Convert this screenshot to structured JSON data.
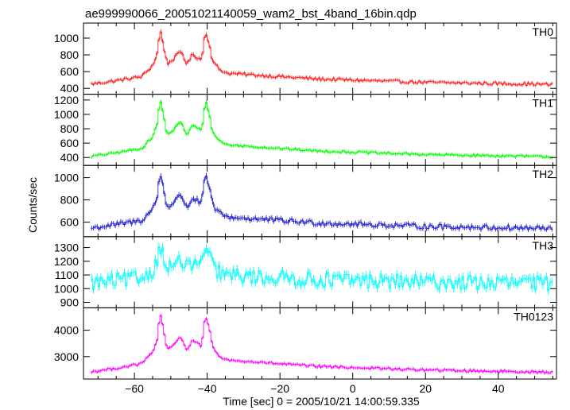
{
  "chart_data": {
    "type": "line",
    "title": "ae999990066_20051021140059_wam2_bst_4band_16bin.qdp",
    "xlabel": "Time [sec] 0 = 2005/10/21 14:00:59.335",
    "ylabel": "Counts/sec",
    "xlim": [
      -74,
      56
    ],
    "x_ticks": [
      -60,
      -40,
      -20,
      0,
      20,
      40
    ],
    "x_tick_labels": [
      "−60",
      "−40",
      "−20",
      "0",
      "20",
      "40"
    ],
    "grid": false,
    "legend": "none",
    "error_bars": true,
    "bin_width_sec": 0.5,
    "profile": {
      "x": [
        -72,
        -66,
        -62,
        -58,
        -55,
        -53.5,
        -53,
        -52.3,
        -51,
        -49.5,
        -48,
        -47,
        -46.5,
        -45.5,
        -44,
        -42.5,
        -41.5,
        -40.5,
        -39.5,
        -38.5,
        -36.5,
        -34.5,
        -30,
        -25,
        -20,
        -15,
        -10,
        0,
        10,
        20,
        30,
        40,
        50,
        55
      ],
      "level": [
        0.03,
        0.08,
        0.12,
        0.16,
        0.35,
        0.6,
        1.0,
        0.8,
        0.38,
        0.45,
        0.55,
        0.6,
        0.5,
        0.37,
        0.55,
        0.48,
        0.45,
        0.95,
        0.75,
        0.42,
        0.28,
        0.22,
        0.2,
        0.18,
        0.16,
        0.14,
        0.12,
        0.1,
        0.08,
        0.06,
        0.05,
        0.04,
        0.03,
        0.02
      ]
    },
    "panels": [
      {
        "name": "TH0",
        "color": "#ff2020",
        "ylim": [
          330,
          1180
        ],
        "y_ticks": [
          400,
          600,
          800,
          1000
        ],
        "base": 430,
        "peak": 1120,
        "noise": 18
      },
      {
        "name": "TH1",
        "color": "#00ff00",
        "ylim": [
          290,
          1280
        ],
        "y_ticks": [
          400,
          600,
          800,
          1000,
          1200
        ],
        "base": 390,
        "peak": 1240,
        "noise": 16
      },
      {
        "name": "TH2",
        "color": "#2020d0",
        "ylim": [
          470,
          1110
        ],
        "y_ticks": [
          600,
          800,
          1000
        ],
        "base": 530,
        "peak": 1060,
        "noise": 22
      },
      {
        "name": "TH3",
        "color": "#00ffff",
        "ylim": [
          860,
          1380
        ],
        "y_ticks": [
          900,
          1000,
          1100,
          1200,
          1300
        ],
        "base": 1030,
        "peak": 1330,
        "noise": 55
      },
      {
        "name": "TH0123",
        "color": "#ff00ff",
        "ylim": [
          2150,
          4850
        ],
        "y_ticks": [
          3000,
          4000
        ],
        "base": 2350,
        "peak": 4700,
        "noise": 45
      }
    ]
  }
}
